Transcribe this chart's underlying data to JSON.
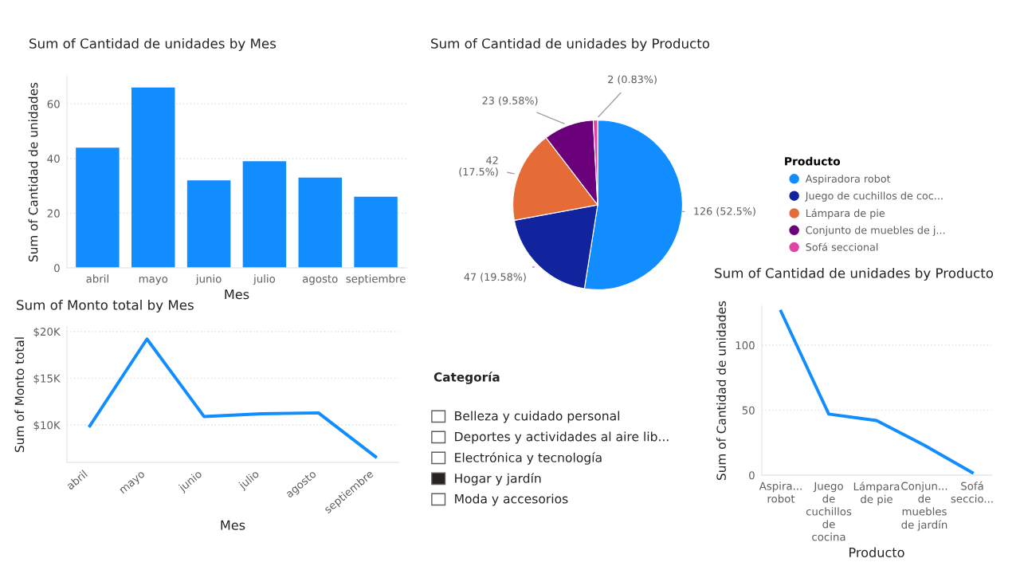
{
  "chart_data": [
    {
      "type": "bar",
      "title": "Sum of Cantidad de unidades by Mes",
      "xlabel": "Mes",
      "ylabel": "Sum of Cantidad de unidades",
      "categories": [
        "abril",
        "mayo",
        "junio",
        "julio",
        "agosto",
        "septiembre"
      ],
      "values": [
        44,
        66,
        32,
        39,
        33,
        26
      ],
      "color": "#118dff",
      "ylim": [
        0,
        70
      ],
      "yticks": [
        0,
        20,
        40,
        60
      ],
      "grid": "y"
    },
    {
      "type": "pie",
      "title": "Sum of Cantidad de unidades by Producto",
      "legend_title": "Producto",
      "legend": "right",
      "categories": [
        "Aspiradora robot",
        "Juego de cuchillos de coc...",
        "Lámpara de pie",
        "Conjunto de muebles de j...",
        "Sofá seccional"
      ],
      "values": [
        126,
        47,
        42,
        23,
        2
      ],
      "colors": [
        "#118dff",
        "#12239e",
        "#e66c37",
        "#6b007b",
        "#e044a7"
      ],
      "value_labels": [
        "126 (52.5%)",
        "47 (19.58%)",
        "42\n(17.5%)",
        "23 (9.58%)",
        "2 (0.83%)"
      ]
    },
    {
      "type": "line",
      "title": "Sum of Monto total by Mes",
      "xlabel": "Mes",
      "ylabel": "Sum of Monto total",
      "categories": [
        "abril",
        "mayo",
        "junio",
        "julio",
        "agosto",
        "septiembre"
      ],
      "values": [
        9900,
        19200,
        10900,
        11200,
        11300,
        6600
      ],
      "color": "#118dff",
      "ylim": [
        6000,
        20500
      ],
      "yticks": [
        {
          "value": 10000,
          "label": "$10K"
        },
        {
          "value": 15000,
          "label": "$15K"
        },
        {
          "value": 20000,
          "label": "$20K"
        }
      ],
      "grid": "y",
      "marker": "none"
    },
    {
      "type": "other",
      "title": "Categoría",
      "categories": [
        "Belleza y cuidado personal",
        "Deportes y actividades al aire lib...",
        "Electrónica y tecnología",
        "Hogar y jardín",
        "Moda y accesorios"
      ],
      "colors": [
        "#ffffff",
        "#ffffff",
        "#ffffff",
        "#252423",
        "#ffffff"
      ]
    },
    {
      "type": "line",
      "title": "Sum of Cantidad de unidades by Producto",
      "xlabel": "Producto",
      "ylabel": "Sum of Cantidad de unidades",
      "categories": [
        "Aspira...\nrobot",
        "Juego\nde\ncuchillos\nde\ncocina",
        "Lámpara\nde pie",
        "Conjun...\nde\nmuebles\nde jardín",
        "Sofá\nseccio..."
      ],
      "values": [
        126,
        47,
        42,
        23,
        2
      ],
      "color": "#118dff",
      "ylim": [
        0,
        130
      ],
      "yticks": [
        0,
        50,
        100
      ],
      "grid": "y",
      "marker": "none"
    }
  ]
}
